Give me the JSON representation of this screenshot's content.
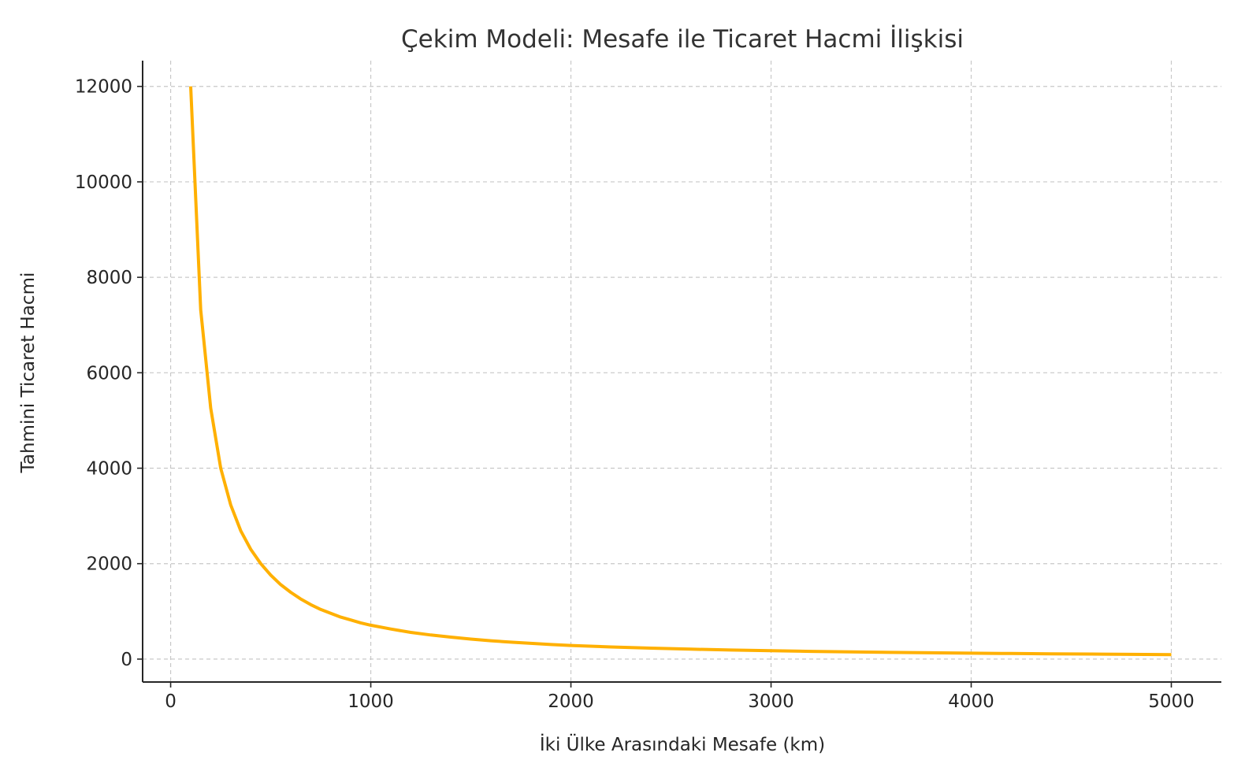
{
  "chart_data": {
    "type": "line",
    "title": "Çekim Modeli: Mesafe ile Ticaret Hacmi İlişkisi",
    "xlabel": "İki Ülke Arasındaki Mesafe (km)",
    "ylabel": "Tahmini Ticaret Hacmi",
    "xlim": [
      -140,
      5250
    ],
    "ylim": [
      -480,
      12540
    ],
    "xticks": [
      0,
      1000,
      2000,
      3000,
      4000,
      5000
    ],
    "yticks": [
      0,
      2000,
      4000,
      6000,
      8000,
      10000,
      12000
    ],
    "grid": true,
    "series": [
      {
        "color": "#FFB000",
        "x": [
          100,
          150,
          200,
          250,
          300,
          350,
          400,
          450,
          500,
          550,
          600,
          650,
          700,
          750,
          800,
          850,
          900,
          950,
          1000,
          1100,
          1200,
          1300,
          1400,
          1500,
          1600,
          1700,
          1800,
          1900,
          2000,
          2200,
          2400,
          2600,
          2800,
          3000,
          3200,
          3400,
          3600,
          3800,
          4000,
          4200,
          4400,
          4600,
          4800,
          5000
        ],
        "y": [
          12000,
          7320,
          5260,
          4000,
          3230,
          2690,
          2300,
          2000,
          1760,
          1560,
          1400,
          1260,
          1140,
          1040,
          960,
          880,
          820,
          760,
          710,
          630,
          560,
          505,
          460,
          420,
          385,
          355,
          330,
          305,
          285,
          255,
          230,
          208,
          190,
          175,
          162,
          151,
          141,
          132,
          124,
          117,
          111,
          105,
          100,
          95
        ]
      }
    ]
  }
}
